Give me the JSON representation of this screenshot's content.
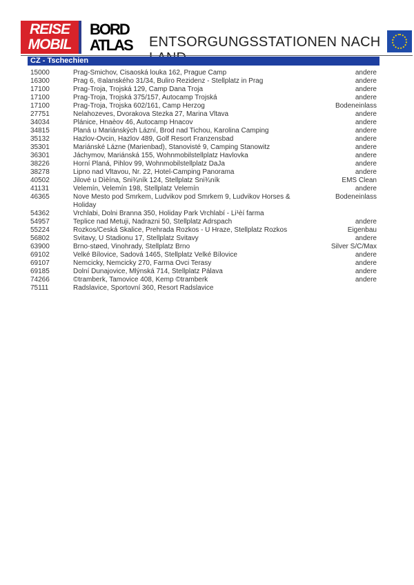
{
  "header": {
    "logo_reisemobil": "REISE MOBIL",
    "logo_bordatlas": "BORD ATLAS",
    "title": "ENTSORGUNGSSTATIONEN NACH LAND",
    "flag_icon": "eu-flag-icon"
  },
  "section": {
    "title": "CZ - Tschechien",
    "color": "#1e3fa0"
  },
  "rows": [
    {
      "zip": "15000",
      "address": "Prag-Smichov, Cisaoská louka 162, Prague Camp",
      "type": "andere"
    },
    {
      "zip": "16300",
      "address": "Prag 6, ®alanského 31/34, Buliro Rezidenz - Stellplatz in Prag",
      "type": "andere"
    },
    {
      "zip": "17100",
      "address": "Prag-Troja, Trojská 129, Camp Dana Troja",
      "type": "andere"
    },
    {
      "zip": "17100",
      "address": "Prag-Troja, Trojská 375/157, Autocamp Trojská",
      "type": "andere"
    },
    {
      "zip": "17100",
      "address": "Prag-Troja, Trojska 602/161, Camp Herzog",
      "type": "Bodeneinlass"
    },
    {
      "zip": "27751",
      "address": "Nelahozeves, Dvorakova Stezka 27, Marina Vltava",
      "type": "andere"
    },
    {
      "zip": "34034",
      "address": "Plánice, Hnaèov 46, Autocamp Hnacov",
      "type": "andere"
    },
    {
      "zip": "34815",
      "address": "Planá u Mariánských Lázní, Brod nad Tichou, Karolina Camping",
      "type": "andere"
    },
    {
      "zip": "35132",
      "address": "Hazlov-Ovcin, Hazlov 489, Golf Resort Franzensbad",
      "type": "andere"
    },
    {
      "zip": "35301",
      "address": "Mariánské Lázne (Marienbad), Stanovisté 9, Camping Stanowitz",
      "type": "andere"
    },
    {
      "zip": "36301",
      "address": "Jáchymov, Mariánská 155, Wohnmobilstellplatz Havlovka",
      "type": "andere"
    },
    {
      "zip": "38226",
      "address": "Horní Planá, Pihlov 99, Wohnmobilstellplatz DaJa",
      "type": "andere"
    },
    {
      "zip": "38278",
      "address": "Lipno nad Vltavou, Nr. 22, Hotel-Camping Panorama",
      "type": "andere"
    },
    {
      "zip": "40502",
      "address": "Jilové u Dìèína, Sni¾ník 124, Stellplatz Sni¾ník",
      "type": "EMS Clean"
    },
    {
      "zip": "41131",
      "address": "Velemín, Velemín 198, Stellplatz Velemín",
      "type": "andere"
    },
    {
      "zip": "46365",
      "address": "Nove Mesto pod Smrkem, Ludvikov pod Smrkem 9, Ludvikov Horses & Holiday",
      "type": "Bodeneinlass"
    },
    {
      "zip": "54362",
      "address": "Vrchlabi, Dolni Branna 350, Holiday Park Vrchlabí - Li¹èí farma",
      "type": ""
    },
    {
      "zip": "54957",
      "address": "Teplice nad Metuji, Nadrazni 50, Stellplatz Adrspach",
      "type": "andere"
    },
    {
      "zip": "55224",
      "address": "Rozkos/Ceská Skalice, Prehrada Rozkos - U Hraze, Stellplatz Rozkos",
      "type": "Eigenbau"
    },
    {
      "zip": "56802",
      "address": "Svitavy, U Stadionu 17, Stellplatz Svitavy",
      "type": "andere"
    },
    {
      "zip": "63900",
      "address": "Brno-støed, Vinohrady, Stellplatz Brno",
      "type": "Silver S/C/Max"
    },
    {
      "zip": "69102",
      "address": "Velké Bílovice, Sadová 1465, Stellplatz Velké Bílovice",
      "type": "andere"
    },
    {
      "zip": "69107",
      "address": "Nemcicky, Nemcicky 270, Farma Ovci Terasy",
      "type": "andere"
    },
    {
      "zip": "69185",
      "address": "Dolní Dunajovice, Mlýnská 714, Stellplatz Pálava",
      "type": "andere"
    },
    {
      "zip": "74266",
      "address": "©tramberk, Tamovice 408, Kemp ©tramberk",
      "type": "andere"
    },
    {
      "zip": "75111",
      "address": "Radslavice, Sportovní 360, Resort Radslavice",
      "type": ""
    }
  ]
}
